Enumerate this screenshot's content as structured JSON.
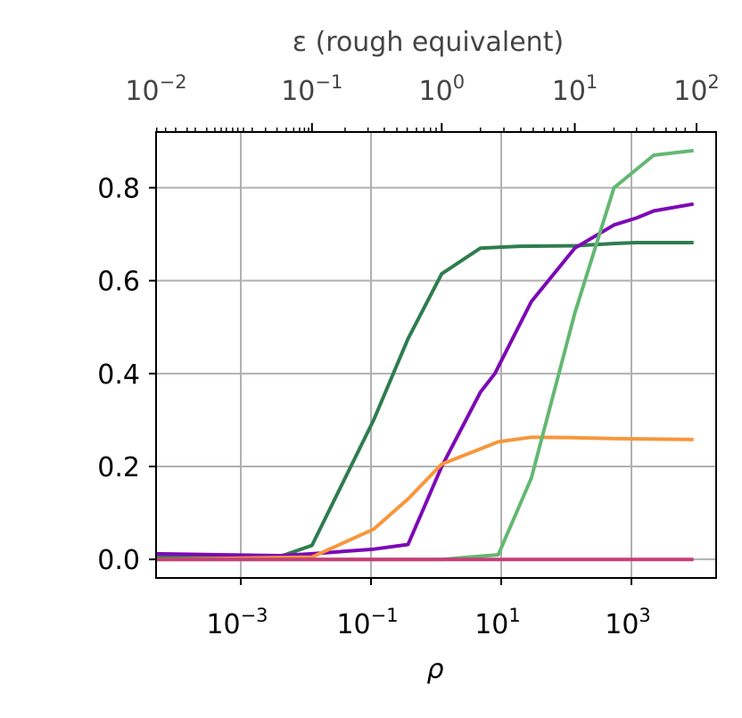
{
  "chart_data": {
    "type": "line",
    "title": "",
    "xlabel": "ρ",
    "ylabel": "",
    "top_axis_label": "ε (rough equivalent)",
    "x_scale": "log",
    "xlim": [
      5e-05,
      20000
    ],
    "ylim": [
      -0.04,
      0.92
    ],
    "x_ticks": [
      {
        "value": 0.001,
        "base": "10",
        "exp": "−3"
      },
      {
        "value": 0.1,
        "base": "10",
        "exp": "−1"
      },
      {
        "value": 10,
        "base": "10",
        "exp": "1"
      },
      {
        "value": 1000,
        "base": "10",
        "exp": "3"
      }
    ],
    "y_ticks": [
      {
        "value": 0.0,
        "label": "0.0"
      },
      {
        "value": 0.2,
        "label": "0.2"
      },
      {
        "value": 0.4,
        "label": "0.4"
      },
      {
        "value": 0.6,
        "label": "0.6"
      },
      {
        "value": 0.8,
        "label": "0.8"
      }
    ],
    "top_ticks": [
      {
        "rho": 1.28e-05,
        "base": "10",
        "exp": "−2"
      },
      {
        "rho": 0.0124,
        "base": "10",
        "exp": "−1"
      },
      {
        "rho": 1.22,
        "base": "10",
        "exp": "0"
      },
      {
        "rho": 135,
        "base": "10",
        "exp": "1"
      },
      {
        "rho": 10000,
        "base": "10",
        "exp": "2"
      }
    ],
    "top_minor_ticks": [
      2.56e-05,
      3.84e-05,
      5.12e-05,
      7e-05,
      0.0001,
      0.00015,
      0.0002,
      0.0003,
      0.0004,
      0.0005,
      0.0006,
      0.00075,
      0.0009,
      0.0011,
      0.0015,
      0.0024,
      0.0036,
      0.005,
      0.0065,
      0.008,
      0.0095,
      0.011,
      0.0124,
      0.04,
      0.09,
      0.16,
      0.25,
      0.36,
      0.5,
      0.65,
      0.82,
      1.0,
      1.22,
      4.8,
      11,
      20,
      31,
      46,
      62,
      82,
      105,
      135,
      540,
      1200,
      2200,
      3400,
      4900,
      6700,
      10000
    ],
    "grid": true,
    "series": [
      {
        "color": "#2e7d4f",
        "x": [
          5e-05,
          0.004,
          0.0124,
          0.11,
          0.37,
          1.22,
          4.8,
          9,
          19,
          135,
          540,
          1200,
          2200,
          9000
        ],
        "values": [
          0.007,
          0.006,
          0.03,
          0.3,
          0.475,
          0.615,
          0.67,
          0.672,
          0.674,
          0.675,
          0.68,
          0.682,
          0.682,
          0.682
        ]
      },
      {
        "color": "#7c09b5",
        "x": [
          5e-05,
          0.004,
          0.0124,
          0.11,
          0.37,
          1.22,
          4.8,
          8,
          29,
          135,
          540,
          1200,
          2200,
          9000
        ],
        "values": [
          0.012,
          0.008,
          0.012,
          0.022,
          0.032,
          0.2,
          0.36,
          0.4,
          0.555,
          0.67,
          0.72,
          0.735,
          0.75,
          0.765
        ]
      },
      {
        "color": "#f7963c",
        "x": [
          5e-05,
          0.0124,
          0.11,
          0.37,
          1.22,
          9,
          29,
          135,
          540,
          9000
        ],
        "values": [
          0.0,
          0.005,
          0.065,
          0.13,
          0.205,
          0.253,
          0.263,
          0.262,
          0.26,
          0.258
        ]
      },
      {
        "color": "#63b872",
        "x": [
          5e-05,
          1.22,
          9,
          29,
          135,
          540,
          2200,
          9000
        ],
        "values": [
          0.0,
          0.0,
          0.01,
          0.175,
          0.53,
          0.8,
          0.87,
          0.88
        ]
      },
      {
        "color": "#c73e78",
        "x": [
          5e-05,
          9000
        ],
        "values": [
          0.0,
          0.0
        ]
      }
    ]
  }
}
